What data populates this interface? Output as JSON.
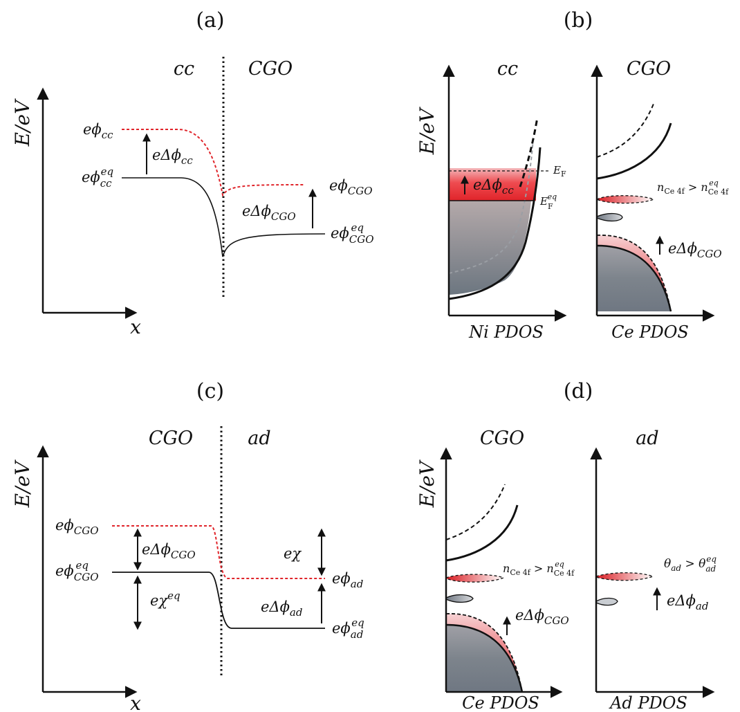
{
  "figure": {
    "panel_a": {
      "label": "(a)",
      "region_left": "cc",
      "region_right": "CGO",
      "y_axis": "E/eV",
      "x_axis": "x",
      "phi_cc": "eϕ",
      "phi_cc_sub": "cc",
      "phi_cc_eq": "eϕ",
      "phi_cc_eq_sub": "cc",
      "phi_cc_eq_sup": "eq",
      "dphi_cc": "eΔϕ",
      "dphi_cc_sub": "cc",
      "phi_cgo": "eϕ",
      "phi_cgo_sub": "CGO",
      "dphi_cgo": "eΔϕ",
      "dphi_cgo_sub": "CGO",
      "phi_cgo_eq": "eϕ",
      "phi_cgo_eq_sub": "CGO",
      "phi_cgo_eq_sup": "eq"
    },
    "panel_b": {
      "label": "(b)",
      "region_left": "cc",
      "region_right": "CGO",
      "y_axis": "E/eV",
      "x_left": "Ni PDOS",
      "x_right": "Ce PDOS",
      "ef": "E",
      "ef_sub": "F",
      "ef_eq": "E",
      "ef_eq_sub": "F",
      "ef_eq_sup": "eq",
      "dphi_cc": "eΔϕ",
      "dphi_cc_sub": "cc",
      "n_ce": "n",
      "n_ce_sub": "Ce 4f",
      "n_ce_gt": " > n",
      "n_ce_eq_sub": "Ce 4f",
      "n_ce_eq_sup": "eq",
      "dphi_cgo": "eΔϕ",
      "dphi_cgo_sub": "CGO"
    },
    "panel_c": {
      "label": "(c)",
      "region_left": "CGO",
      "region_right": "ad",
      "y_axis": "E/eV",
      "x_axis": "x",
      "phi_cgo": "eϕ",
      "phi_cgo_sub": "CGO",
      "dphi_cgo": "eΔϕ",
      "dphi_cgo_sub": "CGO",
      "phi_cgo_eq": "eϕ",
      "phi_cgo_eq_sub": "CGO",
      "phi_cgo_eq_sup": "eq",
      "chi_eq": "eχ",
      "chi_eq_sup": "eq",
      "chi": "eχ",
      "phi_ad": "eϕ",
      "phi_ad_sub": "ad",
      "dphi_ad": "eΔϕ",
      "dphi_ad_sub": "ad",
      "phi_ad_eq": "eϕ",
      "phi_ad_eq_sub": "ad",
      "phi_ad_eq_sup": "eq"
    },
    "panel_d": {
      "label": "(d)",
      "region_left": "CGO",
      "region_right": "ad",
      "y_axis": "E/eV",
      "x_left": "Ce PDOS",
      "x_right": "Ad PDOS",
      "n_ce": "n",
      "n_ce_sub": "Ce 4f",
      "n_ce_gt": " > n",
      "n_ce_eq_sub": "Ce 4f",
      "n_ce_eq_sup": "eq",
      "dphi_cgo": "eΔϕ",
      "dphi_cgo_sub": "CGO",
      "theta": "θ",
      "theta_sub": "ad",
      "theta_gt": " > θ",
      "theta_eq_sub": "ad",
      "theta_eq_sup": "eq",
      "dphi_ad": "eΔϕ",
      "dphi_ad_sub": "ad"
    }
  },
  "colors": {
    "ink": "#111111",
    "perturbed_red": "#e0242a",
    "band_gray": "#6f7782",
    "band_gray_light": "#c9cdd2"
  }
}
